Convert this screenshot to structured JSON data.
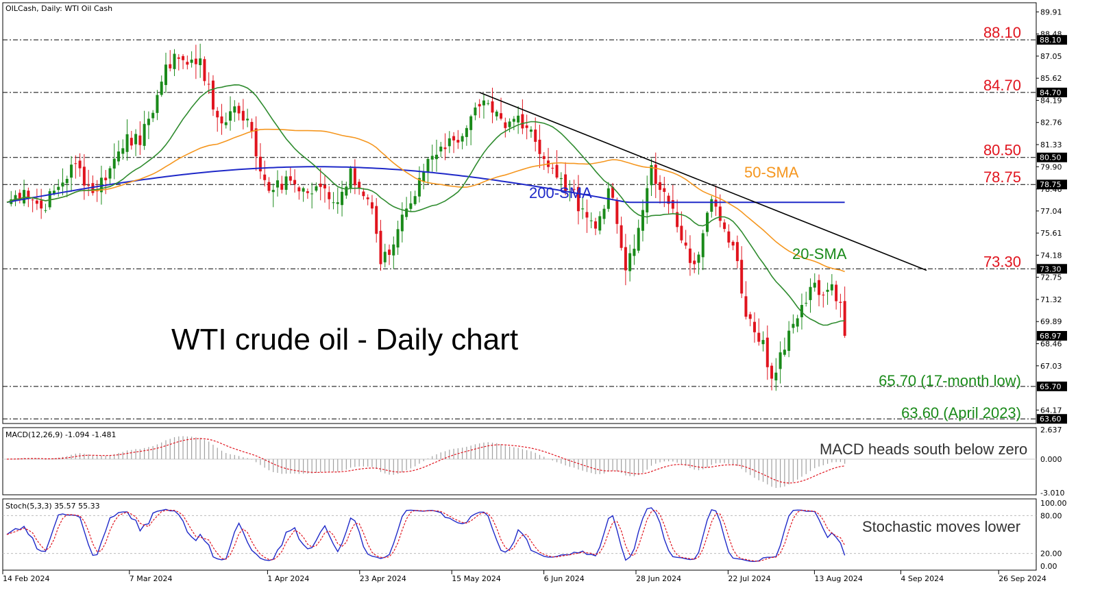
{
  "header": {
    "symbol_line": "OILCash, Daily:  WTI Oil Cash"
  },
  "main_title": "WTI crude oil - Daily chart",
  "colors": {
    "bull": "#1a8a1a",
    "bear": "#e0141e",
    "sma20": "#2e8b2e",
    "sma50": "#f5961e",
    "sma200": "#1e28c8",
    "trend": "#000000",
    "macd_hist": "#a0a0a0",
    "signal": "#e0141e",
    "stoch_k": "#1e28c8",
    "stoch_d": "#e0141e"
  },
  "price_axis": {
    "ticks": [
      "89.91",
      "88.48",
      "87.05",
      "85.62",
      "84.19",
      "82.76",
      "81.33",
      "79.90",
      "78.46",
      "77.04",
      "75.61",
      "74.18",
      "72.75",
      "71.32",
      "69.89",
      "68.46",
      "67.03",
      "64.17"
    ],
    "tags": [
      "88.10",
      "84.70",
      "80.50",
      "78.75",
      "73.30",
      "68.97",
      "65.70",
      "63.60"
    ]
  },
  "levels": [
    {
      "value": 88.1,
      "label": "88.10",
      "style": "red"
    },
    {
      "value": 84.7,
      "label": "84.70",
      "style": "red"
    },
    {
      "value": 80.5,
      "label": "80.50",
      "style": "red"
    },
    {
      "value": 78.75,
      "label": "78.75",
      "style": "red"
    },
    {
      "value": 73.3,
      "label": "73.30",
      "style": "red"
    },
    {
      "value": 65.7,
      "label": "65.70 (17-month low)",
      "style": "green"
    },
    {
      "value": 63.6,
      "label": "63.60 (April 2023)",
      "style": "green"
    }
  ],
  "ma_labels": {
    "sma50": "50-SMA",
    "sma200": "200-SMA",
    "sma20": "20-SMA"
  },
  "macd": {
    "header": "MACD(12,26,9) -1.094 -1.481",
    "ticks": [
      "2.637",
      "0.000",
      "-3.010"
    ],
    "note": "MACD heads south below zero"
  },
  "stoch": {
    "header": "Stoch(5,3,3) 35.57 55.33",
    "ticks": [
      "100.00",
      "80.00",
      "20.00",
      "0.00"
    ],
    "note": "Stochastic moves lower"
  },
  "date_axis": [
    "14 Feb 2024",
    "7 Mar 2024",
    "1 Apr 2024",
    "23 Apr 2024",
    "15 May 2024",
    "6 Jun 2024",
    "28 Jun 2024",
    "22 Jul 2024",
    "13 Aug 2024",
    "4 Sep 2024",
    "26 Sep 2024"
  ],
  "chart_data": {
    "type": "candlestick",
    "title": "WTI crude oil - Daily chart",
    "subtitle": "OILCash, Daily:  WTI Oil Cash",
    "x_range": [
      "14 Feb 2024",
      "26 Sep 2024"
    ],
    "ylim": [
      63.3,
      90.5
    ],
    "grid": false,
    "close_anchors": [
      {
        "i": 0,
        "c": 77.6
      },
      {
        "i": 4,
        "c": 78.4
      },
      {
        "i": 8,
        "c": 77.2
      },
      {
        "i": 12,
        "c": 78.6
      },
      {
        "i": 16,
        "c": 80.1
      },
      {
        "i": 20,
        "c": 78.2
      },
      {
        "i": 24,
        "c": 79.8
      },
      {
        "i": 28,
        "c": 82.0
      },
      {
        "i": 31,
        "c": 81.3
      },
      {
        "i": 33,
        "c": 83.0
      },
      {
        "i": 36,
        "c": 85.4
      },
      {
        "i": 39,
        "c": 87.2
      },
      {
        "i": 42,
        "c": 86.5
      },
      {
        "i": 45,
        "c": 86.9
      },
      {
        "i": 48,
        "c": 83.6
      },
      {
        "i": 50,
        "c": 82.7
      },
      {
        "i": 53,
        "c": 83.8
      },
      {
        "i": 56,
        "c": 83.0
      },
      {
        "i": 59,
        "c": 79.6
      },
      {
        "i": 62,
        "c": 78.4
      },
      {
        "i": 66,
        "c": 79.0
      },
      {
        "i": 70,
        "c": 78.2
      },
      {
        "i": 74,
        "c": 78.5
      },
      {
        "i": 77,
        "c": 77.6
      },
      {
        "i": 80,
        "c": 79.8
      },
      {
        "i": 83,
        "c": 78.0
      },
      {
        "i": 85,
        "c": 77.2
      },
      {
        "i": 87,
        "c": 73.6
      },
      {
        "i": 89,
        "c": 74.2
      },
      {
        "i": 92,
        "c": 76.8
      },
      {
        "i": 95,
        "c": 78.0
      },
      {
        "i": 98,
        "c": 80.4
      },
      {
        "i": 101,
        "c": 81.2
      },
      {
        "i": 104,
        "c": 81.6
      },
      {
        "i": 107,
        "c": 82.4
      },
      {
        "i": 110,
        "c": 83.8
      },
      {
        "i": 113,
        "c": 83.4
      },
      {
        "i": 116,
        "c": 82.4
      },
      {
        "i": 119,
        "c": 83.2
      },
      {
        "i": 122,
        "c": 82.3
      },
      {
        "i": 125,
        "c": 80.4
      },
      {
        "i": 128,
        "c": 79.2
      },
      {
        "i": 131,
        "c": 78.3
      },
      {
        "i": 134,
        "c": 77.2
      },
      {
        "i": 137,
        "c": 75.9
      },
      {
        "i": 140,
        "c": 78.5
      },
      {
        "i": 142,
        "c": 76.2
      },
      {
        "i": 144,
        "c": 73.2
      },
      {
        "i": 146,
        "c": 74.6
      },
      {
        "i": 148,
        "c": 77.1
      },
      {
        "i": 150,
        "c": 80.0
      },
      {
        "i": 152,
        "c": 78.4
      },
      {
        "i": 154,
        "c": 77.5
      },
      {
        "i": 156,
        "c": 76.0
      },
      {
        "i": 158,
        "c": 74.8
      },
      {
        "i": 160,
        "c": 73.6
      },
      {
        "i": 162,
        "c": 75.6
      },
      {
        "i": 164,
        "c": 77.8
      },
      {
        "i": 166,
        "c": 76.4
      },
      {
        "i": 168,
        "c": 75.0
      },
      {
        "i": 170,
        "c": 73.8
      },
      {
        "i": 172,
        "c": 70.2
      },
      {
        "i": 174,
        "c": 69.2
      },
      {
        "i": 176,
        "c": 68.7
      },
      {
        "i": 178,
        "c": 66.2
      },
      {
        "i": 180,
        "c": 67.9
      },
      {
        "i": 182,
        "c": 69.3
      },
      {
        "i": 184,
        "c": 70.1
      },
      {
        "i": 186,
        "c": 71.1
      },
      {
        "i": 188,
        "c": 72.4
      },
      {
        "i": 190,
        "c": 71.6
      },
      {
        "i": 192,
        "c": 72.3
      },
      {
        "i": 194,
        "c": 71.1
      },
      {
        "i": 195,
        "c": 68.97
      }
    ]
  }
}
